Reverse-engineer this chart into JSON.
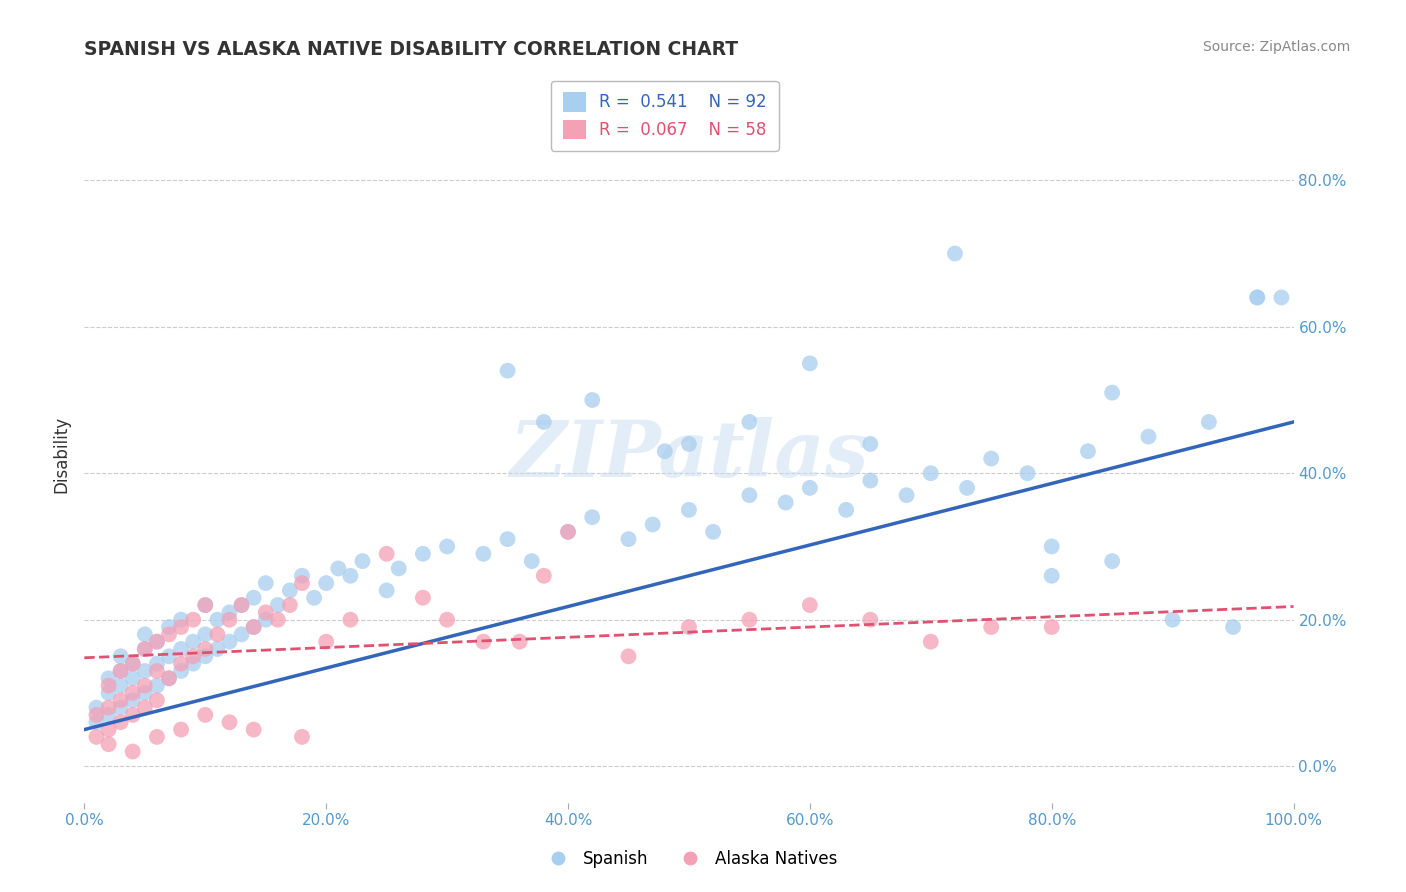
{
  "title": "SPANISH VS ALASKA NATIVE DISABILITY CORRELATION CHART",
  "source": "Source: ZipAtlas.com",
  "ylabel": "Disability",
  "xlim": [
    0.0,
    1.0
  ],
  "ylim": [
    -0.05,
    0.9
  ],
  "xticks": [
    0.0,
    0.2,
    0.4,
    0.6,
    0.8,
    1.0
  ],
  "xtick_labels": [
    "0.0%",
    "20.0%",
    "40.0%",
    "60.0%",
    "80.0%",
    "100.0%"
  ],
  "yticks": [
    0.0,
    0.2,
    0.4,
    0.6,
    0.8
  ],
  "ytick_labels": [
    "0.0%",
    "20.0%",
    "40.0%",
    "60.0%",
    "80.0%"
  ],
  "blue_color": "#A8CEF0",
  "pink_color": "#F4A0B5",
  "blue_line_color": "#3366BB",
  "pink_line_color": "#E05070",
  "legend_R_blue": "0.541",
  "legend_N_blue": "92",
  "legend_R_pink": "0.067",
  "legend_N_pink": "58",
  "legend_label_blue": "Spanish",
  "legend_label_pink": "Alaska Natives",
  "watermark": "ZIPatlas",
  "blue_x": [
    0.01,
    0.01,
    0.02,
    0.02,
    0.02,
    0.03,
    0.03,
    0.03,
    0.03,
    0.04,
    0.04,
    0.04,
    0.05,
    0.05,
    0.05,
    0.05,
    0.06,
    0.06,
    0.06,
    0.07,
    0.07,
    0.07,
    0.08,
    0.08,
    0.08,
    0.09,
    0.09,
    0.1,
    0.1,
    0.1,
    0.11,
    0.11,
    0.12,
    0.12,
    0.13,
    0.13,
    0.14,
    0.14,
    0.15,
    0.15,
    0.16,
    0.17,
    0.18,
    0.19,
    0.2,
    0.21,
    0.22,
    0.23,
    0.25,
    0.26,
    0.28,
    0.3,
    0.33,
    0.35,
    0.37,
    0.4,
    0.42,
    0.45,
    0.47,
    0.5,
    0.52,
    0.55,
    0.58,
    0.6,
    0.63,
    0.65,
    0.68,
    0.7,
    0.73,
    0.75,
    0.78,
    0.8,
    0.83,
    0.85,
    0.88,
    0.9,
    0.93,
    0.95,
    0.97,
    0.99,
    0.35,
    0.38,
    0.42,
    0.48,
    0.5,
    0.55,
    0.6,
    0.65,
    0.72,
    0.8,
    0.85,
    0.97
  ],
  "blue_y": [
    0.06,
    0.08,
    0.07,
    0.1,
    0.12,
    0.08,
    0.11,
    0.13,
    0.15,
    0.09,
    0.12,
    0.14,
    0.1,
    0.13,
    0.16,
    0.18,
    0.11,
    0.14,
    0.17,
    0.12,
    0.15,
    0.19,
    0.13,
    0.16,
    0.2,
    0.14,
    0.17,
    0.15,
    0.18,
    0.22,
    0.16,
    0.2,
    0.17,
    0.21,
    0.18,
    0.22,
    0.19,
    0.23,
    0.2,
    0.25,
    0.22,
    0.24,
    0.26,
    0.23,
    0.25,
    0.27,
    0.26,
    0.28,
    0.24,
    0.27,
    0.29,
    0.3,
    0.29,
    0.31,
    0.28,
    0.32,
    0.34,
    0.31,
    0.33,
    0.35,
    0.32,
    0.37,
    0.36,
    0.38,
    0.35,
    0.39,
    0.37,
    0.4,
    0.38,
    0.42,
    0.4,
    0.3,
    0.43,
    0.28,
    0.45,
    0.2,
    0.47,
    0.19,
    0.64,
    0.64,
    0.54,
    0.47,
    0.5,
    0.43,
    0.44,
    0.47,
    0.55,
    0.44,
    0.7,
    0.26,
    0.51,
    0.64
  ],
  "pink_x": [
    0.01,
    0.01,
    0.02,
    0.02,
    0.02,
    0.03,
    0.03,
    0.03,
    0.04,
    0.04,
    0.04,
    0.05,
    0.05,
    0.05,
    0.06,
    0.06,
    0.06,
    0.07,
    0.07,
    0.08,
    0.08,
    0.09,
    0.09,
    0.1,
    0.1,
    0.11,
    0.12,
    0.13,
    0.14,
    0.15,
    0.16,
    0.17,
    0.18,
    0.2,
    0.22,
    0.25,
    0.28,
    0.3,
    0.33,
    0.36,
    0.38,
    0.4,
    0.45,
    0.5,
    0.55,
    0.6,
    0.65,
    0.7,
    0.75,
    0.8,
    0.02,
    0.04,
    0.06,
    0.08,
    0.1,
    0.12,
    0.14,
    0.18
  ],
  "pink_y": [
    0.04,
    0.07,
    0.05,
    0.08,
    0.11,
    0.06,
    0.09,
    0.13,
    0.07,
    0.1,
    0.14,
    0.08,
    0.11,
    0.16,
    0.09,
    0.13,
    0.17,
    0.12,
    0.18,
    0.14,
    0.19,
    0.15,
    0.2,
    0.16,
    0.22,
    0.18,
    0.2,
    0.22,
    0.19,
    0.21,
    0.2,
    0.22,
    0.25,
    0.17,
    0.2,
    0.29,
    0.23,
    0.2,
    0.17,
    0.17,
    0.26,
    0.32,
    0.15,
    0.19,
    0.2,
    0.22,
    0.2,
    0.17,
    0.19,
    0.19,
    0.03,
    0.02,
    0.04,
    0.05,
    0.07,
    0.06,
    0.05,
    0.04
  ],
  "blue_line_y_start": 0.05,
  "blue_line_y_end": 0.47,
  "pink_line_y_start": 0.148,
  "pink_line_y_end": 0.218,
  "grid_color": "#CCCCCC",
  "background_color": "#FFFFFF",
  "title_color": "#333333",
  "tick_color": "#5599CC",
  "source_color": "#888888"
}
